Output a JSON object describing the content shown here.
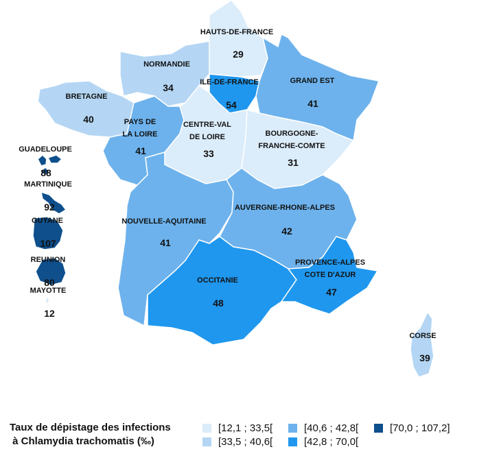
{
  "colors": {
    "c1": "#dbecfa",
    "c2": "#b4d6f4",
    "c3": "#6db2ec",
    "c4": "#1f97ee",
    "c5": "#0e4f8c"
  },
  "regions": {
    "hauts_de_france": {
      "name": "HAUTS-DE-FRANCE",
      "value": "29",
      "class": "c1"
    },
    "normandie": {
      "name": "NORMANDIE",
      "value": "34",
      "class": "c2"
    },
    "ile_de_france": {
      "name": "ILE-DE-FRANCE",
      "value": "54",
      "class": "c4"
    },
    "grand_est": {
      "name": "GRAND EST",
      "value": "41",
      "class": "c3"
    },
    "bretagne": {
      "name": "BRETAGNE",
      "value": "40",
      "class": "c2"
    },
    "pays_de_la_loire": {
      "name_line1": "PAYS DE",
      "name_line2": "LA LOIRE",
      "value": "41",
      "class": "c3"
    },
    "centre_val_de_loire": {
      "name_line1": "CENTRE-VAL",
      "name_line2": "DE LOIRE",
      "value": "33",
      "class": "c1"
    },
    "bourgogne_franche_comte": {
      "name_line1": "BOURGOGNE-",
      "name_line2": "FRANCHE-COMTE",
      "value": "31",
      "class": "c1"
    },
    "nouvelle_aquitaine": {
      "name": "NOUVELLE-AQUITAINE",
      "value": "41",
      "class": "c3"
    },
    "auvergne_rhone_alpes": {
      "name": "AUVERGNE-RHONE-ALPES",
      "value": "42",
      "class": "c3"
    },
    "occitanie": {
      "name": "OCCITANIE",
      "value": "48",
      "class": "c4"
    },
    "provence_alpes_cote_dazur": {
      "name_line1": "PROVENCE-ALPES",
      "name_line2": "COTE D'AZUR",
      "value": "47",
      "class": "c4"
    },
    "corse": {
      "name": "CORSE",
      "value": "39",
      "class": "c2"
    },
    "guadeloupe": {
      "name": "GUADELOUPE",
      "value": "88",
      "class": "c5"
    },
    "martinique": {
      "name": "MARTINIQUE",
      "value": "92",
      "class": "c5"
    },
    "guyane": {
      "name": "GUYANE",
      "value": "107",
      "class": "c5"
    },
    "reunion": {
      "name": "REUNION",
      "value": "80",
      "class": "c5"
    },
    "mayotte": {
      "name": "MAYOTTE",
      "value": "12",
      "class": "c1"
    }
  },
  "legend": {
    "title_line1": "Taux de dépistage des infections",
    "title_line2": " à Chlamydia trachomatis (‰)",
    "items": [
      {
        "label": "[12,1 ; 33,5[",
        "class": "c1"
      },
      {
        "label": "[33,5 ; 40,6[",
        "class": "c2"
      },
      {
        "label": "[40,6 ; 42,8[",
        "class": "c3"
      },
      {
        "label": "[42,8 ; 70,0[",
        "class": "c4"
      },
      {
        "label": "[70,0 ; 107,2]",
        "class": "c5"
      }
    ]
  }
}
